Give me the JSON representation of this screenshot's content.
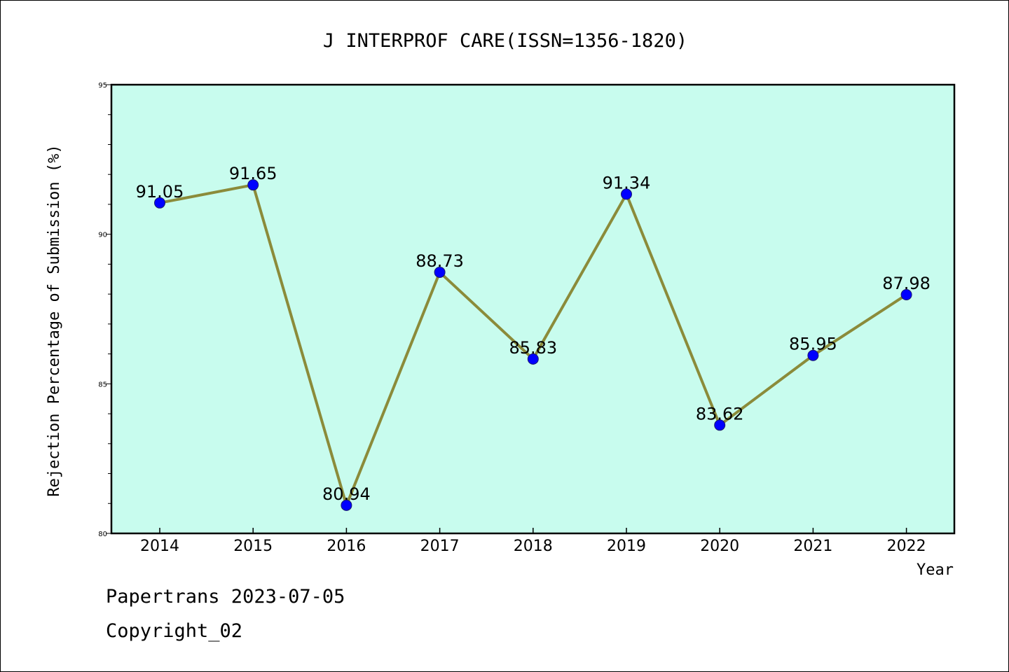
{
  "chart_data": {
    "type": "line",
    "title": "J INTERPROF CARE(ISSN=1356-1820)",
    "xlabel": "Year",
    "ylabel": "Rejection Percentage of Submission (%)",
    "categories": [
      "2014",
      "2015",
      "2016",
      "2017",
      "2018",
      "2019",
      "2020",
      "2021",
      "2022"
    ],
    "values": [
      91.05,
      91.65,
      80.94,
      88.73,
      85.83,
      91.34,
      83.62,
      85.95,
      87.98
    ],
    "data_labels": [
      "91.05",
      "91.65",
      "80.94",
      "88.73",
      "85.83",
      "91.34",
      "83.62",
      "85.95",
      "87.98"
    ],
    "ylim": [
      80,
      95
    ],
    "y_ticks": [
      80,
      85,
      90,
      95
    ],
    "y_tick_labels": [
      "80",
      "85",
      "90",
      "95"
    ],
    "grid": false,
    "colors": {
      "plot_background": "#c8fcee",
      "line": "#8b8b3a",
      "marker": "#0000ff"
    }
  },
  "footer": {
    "line1": "Papertrans 2023-07-05",
    "line2": "Copyright_02"
  }
}
